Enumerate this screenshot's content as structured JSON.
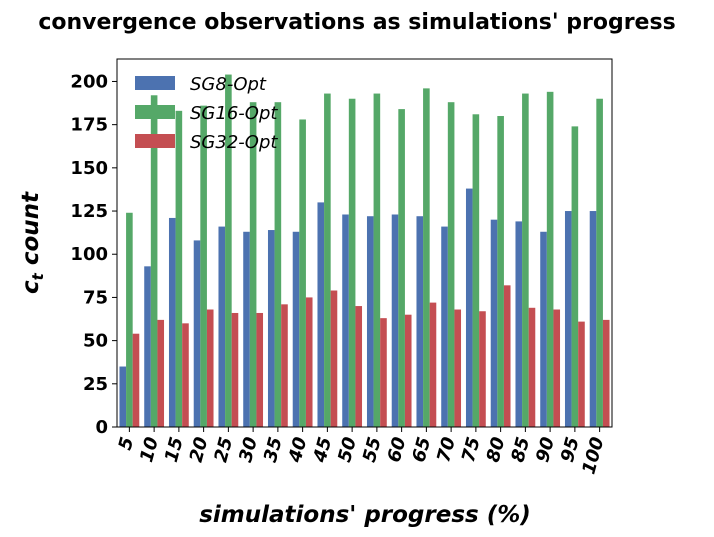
{
  "chart_data": {
    "type": "bar",
    "title": "convergence observations as simulations' progress",
    "xlabel": "simulations' progress (%)",
    "ylabel_main": "c",
    "ylabel_sub": "t",
    "ylabel_rest": " count",
    "categories": [
      "5",
      "10",
      "15",
      "20",
      "25",
      "30",
      "35",
      "40",
      "45",
      "50",
      "55",
      "60",
      "65",
      "70",
      "75",
      "80",
      "85",
      "90",
      "95",
      "100"
    ],
    "yticks": [
      "0",
      "25",
      "50",
      "75",
      "100",
      "125",
      "150",
      "175",
      "200"
    ],
    "ylim": [
      0,
      213
    ],
    "grid": false,
    "legend_position": "upper-left",
    "series": [
      {
        "name": "SG8-Opt",
        "color": "#4c72b0",
        "values": [
          35,
          93,
          121,
          108,
          116,
          113,
          114,
          113,
          130,
          123,
          122,
          123,
          122,
          116,
          138,
          120,
          119,
          113,
          125,
          125
        ]
      },
      {
        "name": "SG16-Opt",
        "color": "#55a868",
        "values": [
          124,
          192,
          183,
          186,
          204,
          188,
          188,
          178,
          193,
          190,
          193,
          184,
          196,
          188,
          181,
          180,
          193,
          194,
          174,
          190
        ]
      },
      {
        "name": "SG32-Opt",
        "color": "#c44e52",
        "values": [
          54,
          62,
          60,
          68,
          66,
          66,
          71,
          75,
          79,
          70,
          63,
          65,
          72,
          68,
          67,
          82,
          69,
          68,
          61,
          62
        ]
      }
    ]
  }
}
